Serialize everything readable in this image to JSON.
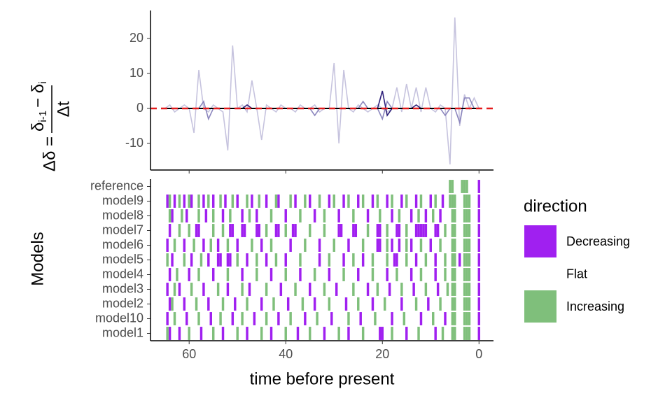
{
  "chart_data": [
    {
      "type": "line",
      "y_label": {
        "lhs": "Δδ =",
        "numerator": [
          "δ",
          "i-1",
          "− δ",
          "i"
        ],
        "denominator": "Δt"
      },
      "xlim": [
        68,
        -3
      ],
      "xticks": [
        60,
        40,
        20,
        0
      ],
      "ylim": [
        -17.6,
        28
      ],
      "yticks": [
        -10,
        0,
        10,
        20
      ],
      "hline": 0,
      "hline_color": "#e41a1c",
      "x": [
        65,
        64,
        63,
        62,
        61,
        60,
        59,
        58,
        57,
        56,
        55,
        54,
        53,
        52,
        51,
        50,
        49,
        48,
        47,
        46,
        45,
        44,
        43,
        42,
        41,
        40,
        39,
        38,
        37,
        36,
        35,
        34,
        33,
        32,
        31,
        30,
        29,
        28,
        27,
        26,
        25,
        24,
        23,
        22,
        21,
        20,
        19,
        18,
        17,
        16,
        15,
        14,
        13,
        12,
        11,
        10,
        9,
        8,
        7,
        6,
        5,
        4,
        3,
        2,
        1,
        0
      ],
      "series": [
        {
          "color": "#c6c3de",
          "values": [
            0,
            1,
            -1,
            0,
            1,
            0,
            -7,
            11,
            0,
            -1,
            1,
            0,
            -1,
            -12,
            18,
            0,
            1,
            -1,
            8,
            0,
            -9,
            1,
            0,
            -1,
            1,
            0,
            0,
            -1,
            1,
            0,
            0,
            1,
            -1,
            0,
            0,
            13,
            -10,
            11,
            0,
            -1,
            1,
            0,
            -1,
            0,
            1,
            0,
            -1,
            0,
            6,
            -1,
            7,
            0,
            6,
            -1,
            6,
            0,
            -1,
            1,
            0,
            -16,
            26,
            -5,
            4,
            0,
            3,
            0
          ]
        },
        {
          "color": "#8c87be",
          "values": [
            0,
            0,
            0,
            0,
            0,
            0,
            0,
            0,
            2,
            -3,
            0,
            0,
            0,
            0,
            0,
            0,
            0,
            0,
            0,
            0,
            0,
            0,
            0,
            0,
            0,
            0,
            0,
            0,
            0,
            0,
            0,
            -2,
            0,
            0,
            0,
            0,
            0,
            0,
            0,
            0,
            0,
            2,
            0,
            0,
            0,
            -3,
            2,
            0,
            0,
            0,
            0,
            0,
            0,
            0,
            0,
            0,
            0,
            0,
            -2,
            0,
            0,
            -4,
            3,
            3,
            0,
            0
          ]
        },
        {
          "color": "#2d1f7a",
          "values": [
            0,
            0,
            0,
            0,
            0,
            0,
            0,
            0,
            0,
            0,
            0,
            0,
            0,
            0,
            0,
            0,
            0,
            1,
            0,
            0,
            0,
            0,
            0,
            0,
            0,
            0,
            0,
            0,
            0,
            0,
            0,
            0,
            0,
            0,
            0,
            0,
            0,
            0,
            0,
            0,
            0,
            0,
            0,
            0,
            0,
            5,
            -2,
            0,
            0,
            0,
            0,
            0,
            1,
            0,
            0,
            0,
            0,
            0,
            0,
            0,
            0,
            0,
            0,
            0,
            0,
            0
          ]
        },
        {
          "color": "#000000",
          "values": [
            0,
            0,
            0,
            0,
            0,
            0,
            0,
            0,
            0,
            0,
            0,
            0,
            0,
            0,
            0,
            0,
            0,
            0,
            0,
            0,
            0,
            0,
            0,
            0,
            0,
            0,
            0,
            0,
            0,
            0,
            0,
            0,
            0,
            0,
            0,
            0,
            0,
            0,
            0,
            0,
            0,
            0,
            0,
            0,
            0,
            0,
            0,
            0,
            0,
            0,
            0,
            0,
            0,
            0,
            0,
            0,
            0,
            0,
            0,
            0,
            0,
            0,
            0,
            0,
            0,
            0
          ]
        }
      ]
    },
    {
      "type": "tile",
      "x_label": "time before present",
      "y_label": "Models",
      "xlim": [
        68,
        -3
      ],
      "xticks": [
        60,
        40,
        20,
        0
      ],
      "legend": {
        "title": "direction",
        "items": [
          {
            "name": "Decreasing",
            "color": "#a020f0"
          },
          {
            "name": "Flat",
            "color": "#ffffff"
          },
          {
            "name": "Increasing",
            "color": "#7fbf7b"
          }
        ]
      },
      "rows": [
        {
          "name": "reference",
          "decreasing": [
            0
          ],
          "increasing": [
            6,
            5.5,
            3.5,
            3,
            2.5
          ]
        },
        {
          "name": "model9",
          "decreasing": [
            64.5,
            63,
            61,
            59.5,
            57,
            55,
            52.5,
            50,
            47,
            44,
            41.5,
            38,
            35,
            31,
            28,
            25,
            22,
            19,
            16,
            13,
            10,
            7.5,
            0
          ],
          "increasing": [
            64,
            62,
            60,
            58,
            56,
            53.5,
            51,
            48,
            45.5,
            42,
            39,
            36,
            33,
            30,
            27,
            24,
            21,
            18,
            15,
            12,
            9,
            6,
            5.5,
            5,
            3,
            2.5,
            2
          ]
        },
        {
          "name": "model8",
          "decreasing": [
            63.5,
            60.5,
            56.5,
            53,
            49,
            46,
            40,
            34,
            29,
            23,
            18,
            14,
            11,
            8,
            0
          ],
          "increasing": [
            64,
            61.5,
            58,
            55,
            51.5,
            47.5,
            43,
            37,
            32,
            26,
            20.5,
            16.5,
            12.5,
            9.5,
            5.5,
            5,
            3,
            2.5,
            2
          ]
        },
        {
          "name": "model7",
          "decreasing": [
            64,
            58.5,
            58,
            51.5,
            51,
            49,
            48.5,
            46,
            45.5,
            42,
            41.5,
            38.5,
            38,
            29,
            28.5,
            26,
            25.5,
            21,
            20.5,
            17,
            16.5,
            13,
            12.5,
            12,
            11.5,
            11,
            9,
            8.5,
            0
          ],
          "increasing": [
            62,
            60,
            55,
            53,
            44,
            40,
            35,
            32,
            23,
            19,
            15,
            7,
            5.5,
            5,
            3,
            2.5,
            2
          ]
        },
        {
          "name": "model6",
          "decreasing": [
            64.5,
            61,
            57,
            54,
            50,
            45,
            39,
            33,
            27,
            21,
            20.5,
            18,
            16.5,
            14,
            10,
            0
          ],
          "increasing": [
            63,
            59,
            55.5,
            52,
            47,
            43,
            36,
            30,
            24,
            19,
            15,
            12,
            8,
            5.5,
            5,
            3,
            2.5,
            2
          ]
        },
        {
          "name": "model5",
          "decreasing": [
            63.5,
            59.5,
            56,
            54,
            53.5,
            52,
            51.5,
            48,
            44,
            40,
            33,
            28,
            24,
            17.5,
            17,
            13,
            9,
            4,
            0
          ],
          "increasing": [
            64.5,
            61,
            57.5,
            50,
            46,
            42,
            37,
            31,
            26,
            22,
            19,
            15,
            11,
            7,
            5.5,
            5,
            3,
            2.5,
            2
          ]
        },
        {
          "name": "model4",
          "decreasing": [
            64,
            60,
            55,
            49,
            43,
            37,
            31,
            25,
            19,
            14,
            9,
            0
          ],
          "increasing": [
            62.5,
            58,
            52,
            46,
            40,
            34,
            28,
            22,
            17,
            12,
            7,
            5.5,
            5,
            3,
            2.5,
            2
          ]
        },
        {
          "name": "model3",
          "decreasing": [
            64.5,
            62,
            57,
            52,
            47.5,
            41,
            35,
            29.5,
            23,
            18.5,
            13.5,
            8.5,
            0
          ],
          "increasing": [
            63,
            59.5,
            54,
            49,
            44,
            38,
            32,
            26,
            21,
            16,
            11,
            6.5,
            5.5,
            5,
            3,
            2.5,
            2
          ]
        },
        {
          "name": "model2",
          "decreasing": [
            64,
            61,
            56,
            50.5,
            45,
            39.5,
            34,
            27.5,
            22,
            16,
            10.5,
            0
          ],
          "increasing": [
            63.5,
            58.5,
            53,
            48,
            42.5,
            36.5,
            31,
            25,
            19.5,
            13,
            8,
            5.5,
            5,
            3,
            2.5,
            2
          ]
        },
        {
          "name": "model10",
          "decreasing": [
            64.5,
            60.5,
            55.5,
            51,
            46.5,
            41.5,
            36,
            30.5,
            24.5,
            18,
            12,
            7,
            0
          ],
          "increasing": [
            63,
            58,
            53.5,
            49,
            44,
            39,
            33.5,
            27,
            21.5,
            15.5,
            9.5,
            5.5,
            5,
            3,
            2.5,
            2
          ]
        },
        {
          "name": "model1",
          "decreasing": [
            64,
            62,
            57.5,
            53,
            48,
            43,
            37.5,
            32,
            27,
            20.5,
            20,
            15,
            9,
            0
          ],
          "increasing": [
            64.5,
            60,
            55,
            50,
            45,
            40,
            35,
            29,
            24,
            18,
            12.5,
            7.5,
            5.5,
            5,
            3,
            2.5,
            2
          ]
        }
      ]
    }
  ]
}
